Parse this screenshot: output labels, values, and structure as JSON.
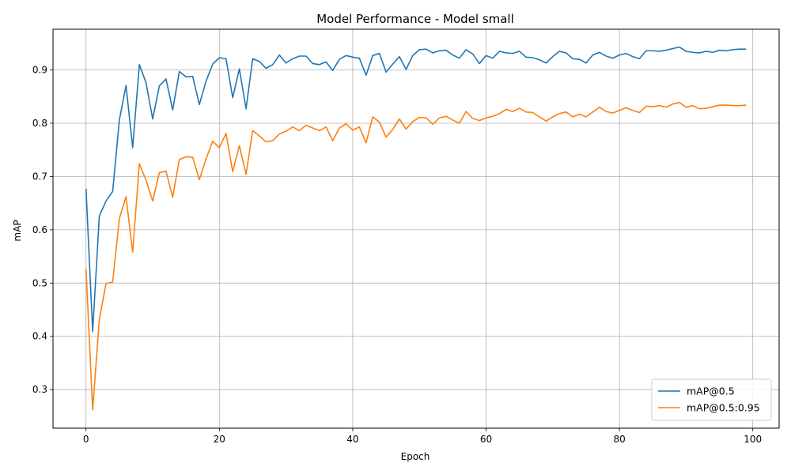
{
  "chart_data": {
    "type": "line",
    "title": "Model Performance - Model small",
    "xlabel": "Epoch",
    "ylabel": "mAP",
    "xlim": [
      -4.95,
      103.95
    ],
    "ylim": [
      0.2276,
      0.9764
    ],
    "xticks": [
      0,
      20,
      40,
      60,
      80,
      100
    ],
    "yticks": [
      0.3,
      0.4,
      0.5,
      0.6,
      0.7,
      0.8,
      0.9
    ],
    "grid": true,
    "legend_position": "bottom-right",
    "x": [
      0,
      1,
      2,
      3,
      4,
      5,
      6,
      7,
      8,
      9,
      10,
      11,
      12,
      13,
      14,
      15,
      16,
      17,
      18,
      19,
      20,
      21,
      22,
      23,
      24,
      25,
      26,
      27,
      28,
      29,
      30,
      31,
      32,
      33,
      34,
      35,
      36,
      37,
      38,
      39,
      40,
      41,
      42,
      43,
      44,
      45,
      46,
      47,
      48,
      49,
      50,
      51,
      52,
      53,
      54,
      55,
      56,
      57,
      58,
      59,
      60,
      61,
      62,
      63,
      64,
      65,
      66,
      67,
      68,
      69,
      70,
      71,
      72,
      73,
      74,
      75,
      76,
      77,
      78,
      79,
      80,
      81,
      82,
      83,
      84,
      85,
      86,
      87,
      88,
      89,
      90,
      91,
      92,
      93,
      94,
      95,
      96,
      97,
      98,
      99
    ],
    "series": [
      {
        "name": "mAP@0.5",
        "color": "#1f77b4",
        "values": [
          0.677,
          0.409,
          0.626,
          0.654,
          0.672,
          0.806,
          0.871,
          0.754,
          0.91,
          0.876,
          0.808,
          0.87,
          0.883,
          0.825,
          0.897,
          0.887,
          0.888,
          0.835,
          0.879,
          0.911,
          0.923,
          0.921,
          0.848,
          0.902,
          0.827,
          0.921,
          0.916,
          0.903,
          0.91,
          0.928,
          0.913,
          0.921,
          0.926,
          0.926,
          0.912,
          0.91,
          0.915,
          0.899,
          0.92,
          0.927,
          0.924,
          0.922,
          0.89,
          0.927,
          0.931,
          0.896,
          0.911,
          0.925,
          0.901,
          0.927,
          0.938,
          0.939,
          0.932,
          0.936,
          0.937,
          0.928,
          0.922,
          0.938,
          0.93,
          0.912,
          0.927,
          0.922,
          0.935,
          0.932,
          0.931,
          0.935,
          0.924,
          0.923,
          0.919,
          0.913,
          0.925,
          0.935,
          0.932,
          0.921,
          0.92,
          0.913,
          0.928,
          0.933,
          0.926,
          0.922,
          0.928,
          0.931,
          0.925,
          0.921,
          0.936,
          0.936,
          0.935,
          0.937,
          0.94,
          0.943,
          0.935,
          0.933,
          0.932,
          0.935,
          0.933,
          0.937,
          0.936,
          0.938,
          0.939,
          0.939
        ]
      },
      {
        "name": "mAP@0.5:0.95",
        "color": "#ff7f0e",
        "values": [
          0.527,
          0.262,
          0.432,
          0.499,
          0.502,
          0.621,
          0.662,
          0.558,
          0.724,
          0.693,
          0.654,
          0.707,
          0.71,
          0.661,
          0.732,
          0.737,
          0.736,
          0.694,
          0.733,
          0.766,
          0.754,
          0.781,
          0.709,
          0.758,
          0.704,
          0.786,
          0.776,
          0.765,
          0.767,
          0.78,
          0.785,
          0.793,
          0.786,
          0.796,
          0.791,
          0.786,
          0.793,
          0.767,
          0.791,
          0.799,
          0.787,
          0.793,
          0.763,
          0.812,
          0.802,
          0.774,
          0.788,
          0.808,
          0.789,
          0.803,
          0.811,
          0.81,
          0.798,
          0.81,
          0.813,
          0.806,
          0.8,
          0.822,
          0.809,
          0.805,
          0.81,
          0.813,
          0.818,
          0.826,
          0.822,
          0.828,
          0.821,
          0.82,
          0.812,
          0.804,
          0.812,
          0.818,
          0.821,
          0.812,
          0.817,
          0.812,
          0.821,
          0.83,
          0.822,
          0.819,
          0.824,
          0.829,
          0.824,
          0.82,
          0.832,
          0.831,
          0.833,
          0.83,
          0.836,
          0.839,
          0.83,
          0.833,
          0.827,
          0.828,
          0.831,
          0.834,
          0.834,
          0.833,
          0.833,
          0.834
        ]
      }
    ]
  }
}
